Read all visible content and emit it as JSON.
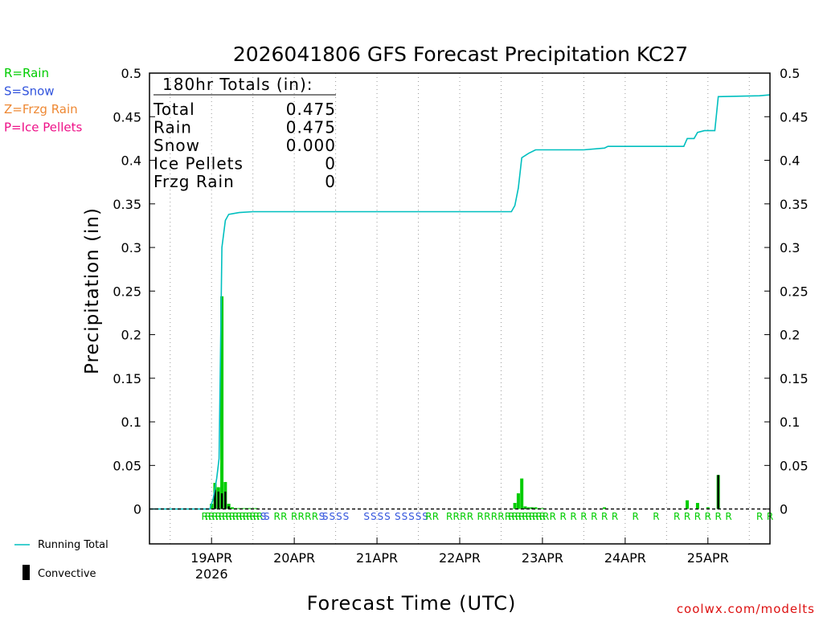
{
  "chart_data": {
    "type": "bar",
    "title": "2026041806 GFS Forecast Precipitation KC27",
    "ylabel": "Precipitation (in)",
    "xlabel": "Forecast Time (UTC)",
    "ylim": [
      -0.04,
      0.5
    ],
    "xlim_hours": [
      0,
      180
    ],
    "yticks": [
      0,
      0.05,
      0.1,
      0.15,
      0.2,
      0.25,
      0.3,
      0.35,
      0.4,
      0.45,
      0.5
    ],
    "ytick_labels": [
      "0",
      "0.05",
      "0.1",
      "0.15",
      "0.2",
      "0.25",
      "0.3",
      "0.35",
      "0.4",
      "0.45",
      "0.5"
    ],
    "xticks": [
      {
        "hour": 18,
        "label": "19APR",
        "sublabel": "2026"
      },
      {
        "hour": 42,
        "label": "20APR"
      },
      {
        "hour": 66,
        "label": "21APR"
      },
      {
        "hour": 90,
        "label": "22APR"
      },
      {
        "hour": 114,
        "label": "23APR"
      },
      {
        "hour": 138,
        "label": "24APR"
      },
      {
        "hour": 162,
        "label": "25APR"
      }
    ],
    "totals": {
      "header": "180hr Totals (in):",
      "rows": [
        {
          "label": "Total",
          "value": "0.475"
        },
        {
          "label": "Rain",
          "value": "0.475"
        },
        {
          "label": "Snow",
          "value": "0.000"
        },
        {
          "label": "Ice Pellets",
          "value": "0"
        },
        {
          "label": "Frzg Rain",
          "value": "0"
        }
      ]
    },
    "ptype_legend": [
      {
        "text": "R=Rain",
        "color": "#00cc00"
      },
      {
        "text": "S=Snow",
        "color": "#3355dd"
      },
      {
        "text": "Z=Frzg Rain",
        "color": "#ee8833"
      },
      {
        "text": "P=Ice Pellets",
        "color": "#ee1188"
      }
    ],
    "series_legend": [
      {
        "name": "Running Total",
        "kind": "line",
        "color": "#00bfbf"
      },
      {
        "name": "Convective",
        "kind": "bar",
        "color": "#000000"
      }
    ],
    "precip_bars": [
      {
        "hour": 18,
        "value": 0.006
      },
      {
        "hour": 19,
        "value": 0.03
      },
      {
        "hour": 20,
        "value": 0.025
      },
      {
        "hour": 21,
        "value": 0.244
      },
      {
        "hour": 22,
        "value": 0.031
      },
      {
        "hour": 23,
        "value": 0.006
      },
      {
        "hour": 24,
        "value": 0.002
      },
      {
        "hour": 25,
        "value": 0.001
      },
      {
        "hour": 26,
        "value": 0.001
      },
      {
        "hour": 27,
        "value": 0.001
      },
      {
        "hour": 28,
        "value": 0.001
      },
      {
        "hour": 29,
        "value": 0.001
      },
      {
        "hour": 30,
        "value": 0.001
      },
      {
        "hour": 31,
        "value": 0.001
      },
      {
        "hour": 106,
        "value": 0.007
      },
      {
        "hour": 107,
        "value": 0.018
      },
      {
        "hour": 108,
        "value": 0.035
      },
      {
        "hour": 109,
        "value": 0.003
      },
      {
        "hour": 110,
        "value": 0.002
      },
      {
        "hour": 111,
        "value": 0.002
      },
      {
        "hour": 112,
        "value": 0.002
      },
      {
        "hour": 113,
        "value": 0.001
      },
      {
        "hour": 114,
        "value": 0.001
      },
      {
        "hour": 132,
        "value": 0.002
      },
      {
        "hour": 156,
        "value": 0.01
      },
      {
        "hour": 159,
        "value": 0.007
      },
      {
        "hour": 162,
        "value": 0.002
      },
      {
        "hour": 165,
        "value": 0.039
      }
    ],
    "convective_bars": [
      {
        "hour": 19,
        "value": 0.022
      },
      {
        "hour": 20,
        "value": 0.02
      },
      {
        "hour": 21,
        "value": 0.018
      },
      {
        "hour": 22,
        "value": 0.02
      },
      {
        "hour": 23,
        "value": 0.003
      },
      {
        "hour": 109,
        "value": 0.001
      },
      {
        "hour": 111,
        "value": 0.001
      },
      {
        "hour": 165,
        "value": 0.039
      }
    ],
    "running_total": [
      {
        "hour": 0,
        "value": 0
      },
      {
        "hour": 17.5,
        "value": 0
      },
      {
        "hour": 18.5,
        "value": 0.012
      },
      {
        "hour": 19.5,
        "value": 0.035
      },
      {
        "hour": 20.2,
        "value": 0.058
      },
      {
        "hour": 21,
        "value": 0.3
      },
      {
        "hour": 22,
        "value": 0.331
      },
      {
        "hour": 23,
        "value": 0.338
      },
      {
        "hour": 26,
        "value": 0.34
      },
      {
        "hour": 30,
        "value": 0.341
      },
      {
        "hour": 90,
        "value": 0.341
      },
      {
        "hour": 105,
        "value": 0.341
      },
      {
        "hour": 106,
        "value": 0.348
      },
      {
        "hour": 107,
        "value": 0.368
      },
      {
        "hour": 108,
        "value": 0.403
      },
      {
        "hour": 110,
        "value": 0.408
      },
      {
        "hour": 112,
        "value": 0.412
      },
      {
        "hour": 126,
        "value": 0.412
      },
      {
        "hour": 132,
        "value": 0.414
      },
      {
        "hour": 133,
        "value": 0.416
      },
      {
        "hour": 155,
        "value": 0.416
      },
      {
        "hour": 156,
        "value": 0.425
      },
      {
        "hour": 158,
        "value": 0.425
      },
      {
        "hour": 159,
        "value": 0.432
      },
      {
        "hour": 161,
        "value": 0.434
      },
      {
        "hour": 164,
        "value": 0.434
      },
      {
        "hour": 165,
        "value": 0.473
      },
      {
        "hour": 177,
        "value": 0.474
      },
      {
        "hour": 180,
        "value": 0.475
      }
    ],
    "ptype_markers": [
      {
        "hour": 16,
        "type": "R"
      },
      {
        "hour": 17,
        "type": "R"
      },
      {
        "hour": 18,
        "type": "R"
      },
      {
        "hour": 19,
        "type": "R"
      },
      {
        "hour": 20,
        "type": "R"
      },
      {
        "hour": 21,
        "type": "R"
      },
      {
        "hour": 22,
        "type": "R"
      },
      {
        "hour": 23,
        "type": "R"
      },
      {
        "hour": 24,
        "type": "R"
      },
      {
        "hour": 25,
        "type": "R"
      },
      {
        "hour": 26,
        "type": "R"
      },
      {
        "hour": 27,
        "type": "R"
      },
      {
        "hour": 28,
        "type": "R"
      },
      {
        "hour": 29,
        "type": "R"
      },
      {
        "hour": 30,
        "type": "R"
      },
      {
        "hour": 31,
        "type": "R"
      },
      {
        "hour": 32,
        "type": "R"
      },
      {
        "hour": 33,
        "type": "S"
      },
      {
        "hour": 34,
        "type": "S"
      },
      {
        "hour": 37,
        "type": "R"
      },
      {
        "hour": 39,
        "type": "R"
      },
      {
        "hour": 42,
        "type": "R"
      },
      {
        "hour": 44,
        "type": "R"
      },
      {
        "hour": 46,
        "type": "R"
      },
      {
        "hour": 48,
        "type": "R"
      },
      {
        "hour": 50,
        "type": "S"
      },
      {
        "hour": 51,
        "type": "S"
      },
      {
        "hour": 53,
        "type": "S"
      },
      {
        "hour": 55,
        "type": "S"
      },
      {
        "hour": 57,
        "type": "S"
      },
      {
        "hour": 63,
        "type": "S"
      },
      {
        "hour": 65,
        "type": "S"
      },
      {
        "hour": 67,
        "type": "S"
      },
      {
        "hour": 69,
        "type": "S"
      },
      {
        "hour": 72,
        "type": "S"
      },
      {
        "hour": 74,
        "type": "S"
      },
      {
        "hour": 76,
        "type": "S"
      },
      {
        "hour": 78,
        "type": "S"
      },
      {
        "hour": 80,
        "type": "S"
      },
      {
        "hour": 81,
        "type": "R"
      },
      {
        "hour": 83,
        "type": "R"
      },
      {
        "hour": 87,
        "type": "R"
      },
      {
        "hour": 89,
        "type": "R"
      },
      {
        "hour": 91,
        "type": "R"
      },
      {
        "hour": 93,
        "type": "R"
      },
      {
        "hour": 96,
        "type": "R"
      },
      {
        "hour": 98,
        "type": "R"
      },
      {
        "hour": 100,
        "type": "R"
      },
      {
        "hour": 102,
        "type": "R"
      },
      {
        "hour": 104,
        "type": "R"
      },
      {
        "hour": 105,
        "type": "R"
      },
      {
        "hour": 106,
        "type": "R"
      },
      {
        "hour": 107,
        "type": "R"
      },
      {
        "hour": 108,
        "type": "R"
      },
      {
        "hour": 109,
        "type": "R"
      },
      {
        "hour": 110,
        "type": "R"
      },
      {
        "hour": 111,
        "type": "R"
      },
      {
        "hour": 112,
        "type": "R"
      },
      {
        "hour": 113,
        "type": "R"
      },
      {
        "hour": 114,
        "type": "R"
      },
      {
        "hour": 115,
        "type": "R"
      },
      {
        "hour": 117,
        "type": "R"
      },
      {
        "hour": 120,
        "type": "R"
      },
      {
        "hour": 123,
        "type": "R"
      },
      {
        "hour": 126,
        "type": "R"
      },
      {
        "hour": 129,
        "type": "R"
      },
      {
        "hour": 132,
        "type": "R"
      },
      {
        "hour": 135,
        "type": "R"
      },
      {
        "hour": 141,
        "type": "R"
      },
      {
        "hour": 147,
        "type": "R"
      },
      {
        "hour": 153,
        "type": "R"
      },
      {
        "hour": 156,
        "type": "R"
      },
      {
        "hour": 159,
        "type": "R"
      },
      {
        "hour": 162,
        "type": "R"
      },
      {
        "hour": 165,
        "type": "R"
      },
      {
        "hour": 168,
        "type": "R"
      },
      {
        "hour": 177,
        "type": "R"
      },
      {
        "hour": 180,
        "type": "R"
      }
    ]
  },
  "colors": {
    "precip_bar": "#00cc00",
    "convective_bar": "#000000",
    "running_total": "#00bfbf",
    "rain": "#00cc00",
    "snow": "#3355dd",
    "credit": "#dd1111"
  },
  "credit": "coolwx.com/modelts"
}
